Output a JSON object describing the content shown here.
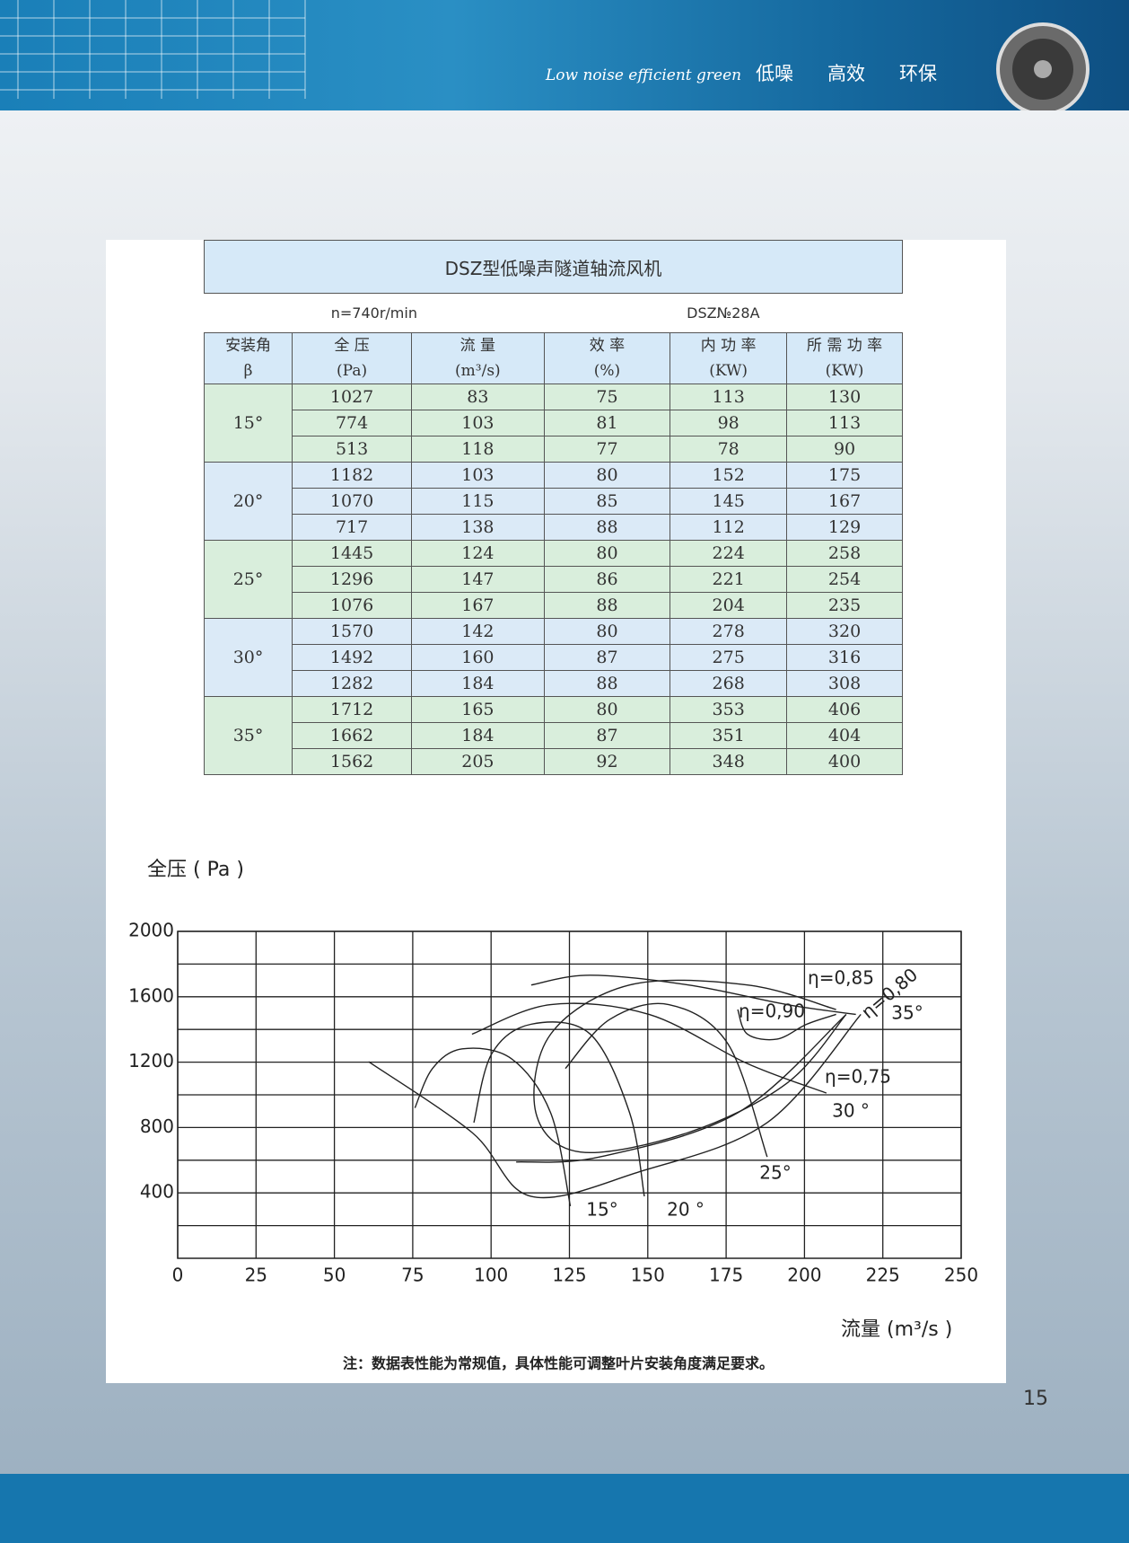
{
  "header": {
    "tagline": "Low noise efficient green",
    "words": [
      "低噪",
      "高效",
      "环保"
    ]
  },
  "table": {
    "title": "DSZ型低噪声隧道轴流风机",
    "speed": "n=740r/min",
    "model": "DSZ№28A",
    "columns": [
      [
        "安装角",
        "β"
      ],
      [
        "全 压",
        "(Pa)"
      ],
      [
        "流 量",
        "(m³/s)"
      ],
      [
        "效 率",
        "(%)"
      ],
      [
        "内 功 率",
        "(KW)"
      ],
      [
        "所 需 功 率",
        "(KW)"
      ]
    ],
    "groups": [
      {
        "angle": "15°",
        "rows": [
          [
            1027,
            83,
            75,
            113,
            130
          ],
          [
            774,
            103,
            81,
            98,
            113
          ],
          [
            513,
            118,
            77,
            78,
            90
          ]
        ]
      },
      {
        "angle": "20°",
        "rows": [
          [
            1182,
            103,
            80,
            152,
            175
          ],
          [
            1070,
            115,
            85,
            145,
            167
          ],
          [
            717,
            138,
            88,
            112,
            129
          ]
        ]
      },
      {
        "angle": "25°",
        "rows": [
          [
            1445,
            124,
            80,
            224,
            258
          ],
          [
            1296,
            147,
            86,
            221,
            254
          ],
          [
            1076,
            167,
            88,
            204,
            235
          ]
        ]
      },
      {
        "angle": "30°",
        "rows": [
          [
            1570,
            142,
            80,
            278,
            320
          ],
          [
            1492,
            160,
            87,
            275,
            316
          ],
          [
            1282,
            184,
            88,
            268,
            308
          ]
        ]
      },
      {
        "angle": "35°",
        "rows": [
          [
            1712,
            165,
            80,
            353,
            406
          ],
          [
            1662,
            184,
            87,
            351,
            404
          ],
          [
            1562,
            205,
            92,
            348,
            400
          ]
        ]
      }
    ]
  },
  "chart_data": {
    "type": "line",
    "y_label": "全压 ( Pa )",
    "x_label": "流量 (m³/s )",
    "xlim": [
      0,
      250
    ],
    "xticks": [
      0,
      25,
      50,
      75,
      100,
      125,
      150,
      175,
      200,
      225,
      250
    ],
    "ylim": [
      0,
      2000
    ],
    "yticks": [
      400,
      800,
      1200,
      1600,
      2000
    ],
    "y_minor_ticks": [
      200,
      600,
      1000,
      1400,
      1800
    ],
    "grid": true,
    "series": [
      {
        "name": "15°",
        "color": "#222222",
        "x": [
          75.7,
          81.3,
          90.8,
          106.5,
          119,
          125.3
        ],
        "values": [
          920,
          1161,
          1281,
          1221,
          890,
          319
        ]
      },
      {
        "name": "20 °",
        "color": "#222222",
        "x": [
          94.5,
          100.2,
          112.8,
          131.6,
          144.2,
          148.9
        ],
        "values": [
          830,
          1251,
          1432,
          1372,
          890,
          379
        ]
      },
      {
        "name": "25°",
        "color": "#222222",
        "x": [
          123.7,
          137.9,
          156.7,
          175.6,
          188.1
        ],
        "values": [
          1161,
          1462,
          1552,
          1311,
          620
        ]
      },
      {
        "name": "30 °",
        "color": "#222222",
        "x": [
          93.9,
          119,
          150.4,
          181.8,
          207
        ],
        "values": [
          1371,
          1552,
          1492,
          1191,
          1011
        ]
      },
      {
        "name": "35°",
        "color": "#222222",
        "x": [
          112.8,
          131.6,
          163,
          194.4,
          216.4
        ],
        "values": [
          1672,
          1732,
          1672,
          1552,
          1492
        ]
      },
      {
        "name": "η=0,90",
        "color": "#222222",
        "x": [
          178.7,
          181.8,
          191.3,
          200.7,
          210.1
        ],
        "values": [
          1522,
          1371,
          1341,
          1432,
          1492
        ]
      },
      {
        "name": "η=0,85",
        "color": "#222222",
        "x": [
          210.1,
          181.8,
          144.2,
          119,
          114.3,
          128.5,
          163,
          194.4,
          213.3
        ],
        "values": [
          1522,
          1672,
          1672,
          1371,
          890,
          650,
          770,
          1071,
          1492
        ]
      },
      {
        "name": "η=0,80",
        "color": "#222222",
        "x": [
          108,
          134.6,
          178.7,
          213.3
        ],
        "values": [
          589,
          620,
          890,
          1492
        ]
      },
      {
        "name": "η=0,75",
        "color": "#222222",
        "x": [
          60.9,
          93.9,
          112.8,
          147.3,
          188.1,
          218
        ],
        "values": [
          1203,
          770,
          379,
          529,
          830,
          1492
        ]
      }
    ]
  },
  "note": "注：数据表性能为常规值，具体性能可调整叶片安装角度满足要求。",
  "page_number": "15"
}
